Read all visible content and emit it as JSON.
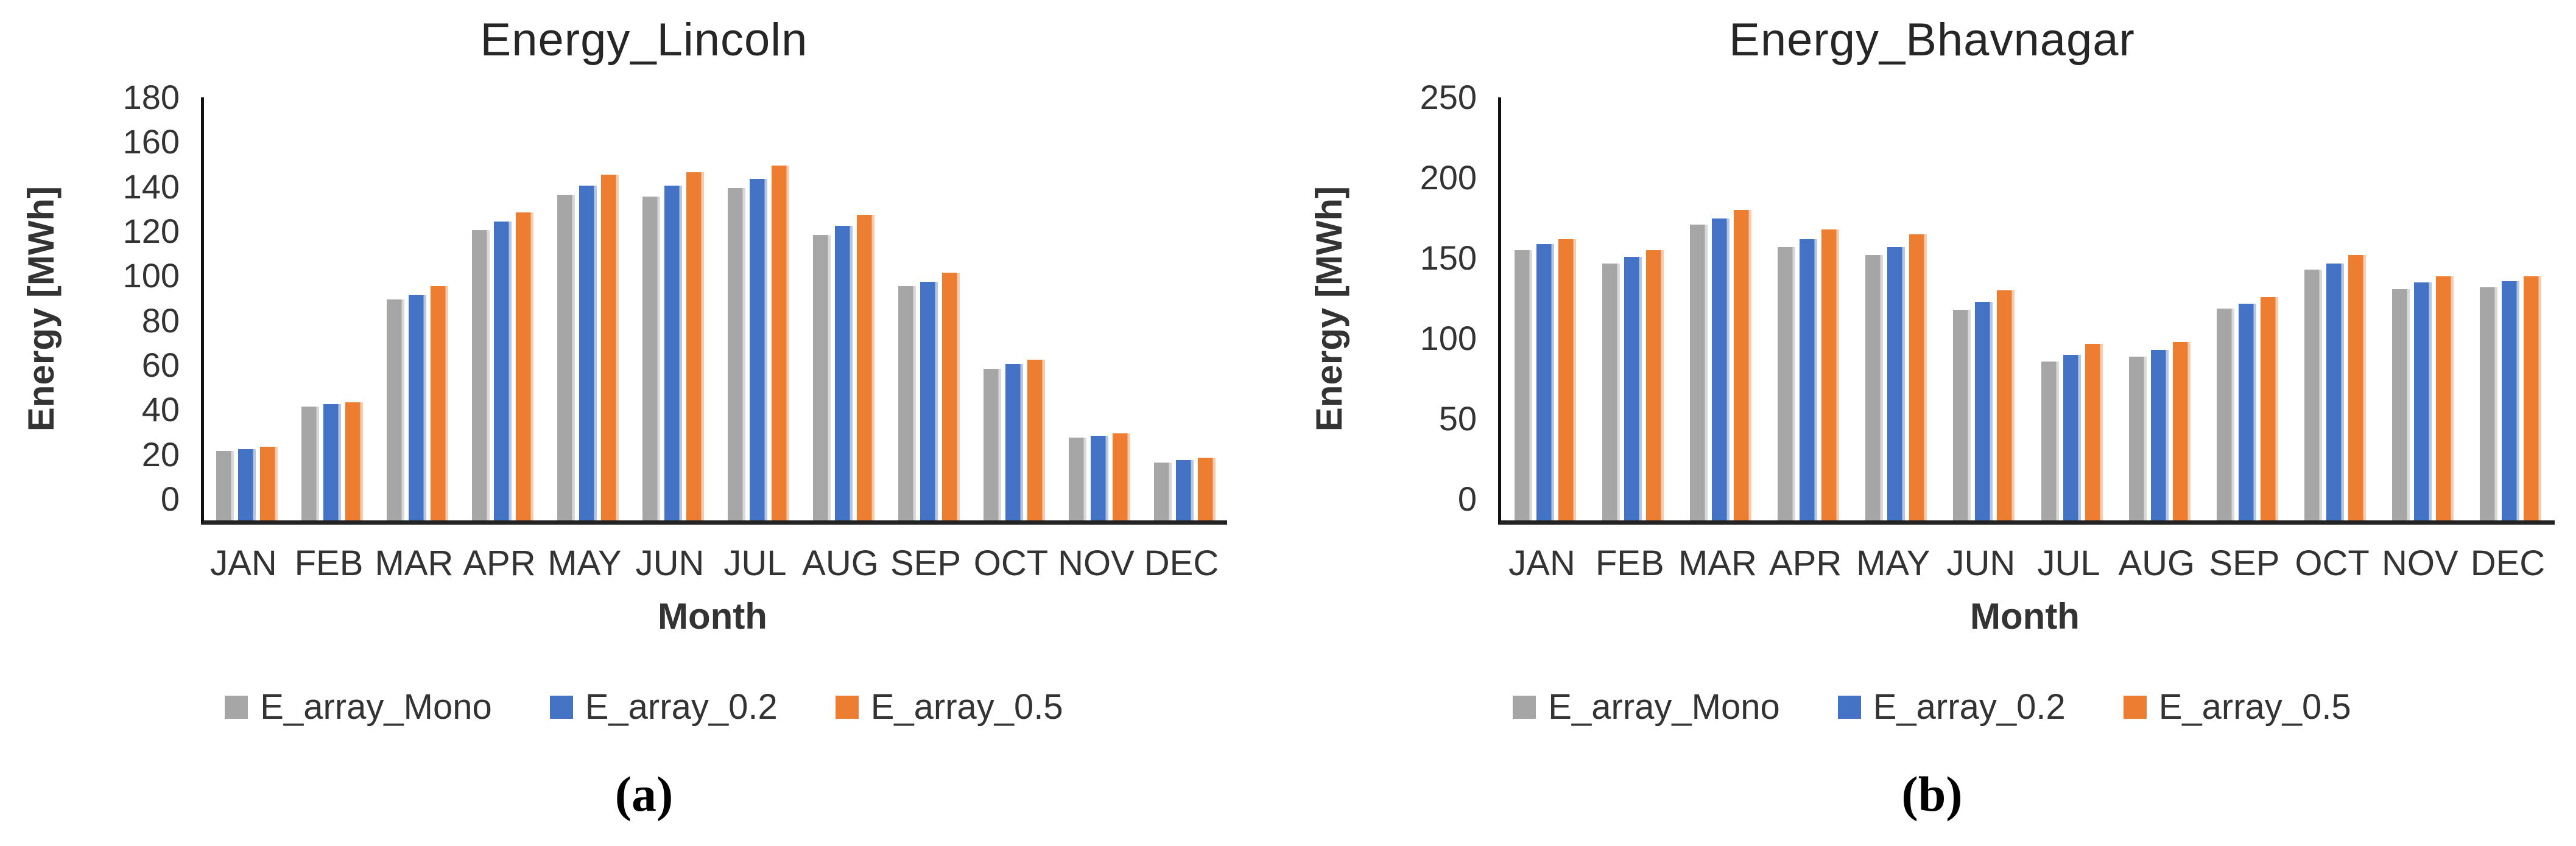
{
  "chart_data": [
    {
      "type": "bar",
      "title": "Energy_Lincoln",
      "xlabel": "Month",
      "ylabel": "Energy [MWh]",
      "ylim": [
        0,
        180
      ],
      "yticks": [
        0,
        20,
        40,
        60,
        80,
        100,
        120,
        140,
        160,
        180
      ],
      "grid": false,
      "legend_position": "bottom",
      "caption": "(a)",
      "categories": [
        "JAN",
        "FEB",
        "MAR",
        "APR",
        "MAY",
        "JUN",
        "JUL",
        "AUG",
        "SEP",
        "OCT",
        "NOV",
        "DEC"
      ],
      "series": [
        {
          "name": "E_array_Mono",
          "color": "#A6A6A6",
          "highlight": "#D9D9D9",
          "values": [
            31,
            51,
            99,
            130,
            146,
            145,
            149,
            128,
            105,
            68,
            37,
            26
          ]
        },
        {
          "name": "E_array_0.2",
          "color": "#4472C4",
          "highlight": "#B4C7E7",
          "values": [
            32,
            52,
            101,
            134,
            150,
            150,
            153,
            132,
            107,
            70,
            38,
            27
          ]
        },
        {
          "name": "E_array_0.5",
          "color": "#ED7D31",
          "highlight": "#F8CBAD",
          "values": [
            33,
            53,
            105,
            138,
            155,
            156,
            159,
            137,
            111,
            72,
            39,
            28
          ]
        }
      ]
    },
    {
      "type": "bar",
      "title": "Energy_Bhavnagar",
      "xlabel": "Month",
      "ylabel": "Energy [MWh]",
      "ylim": [
        0,
        250
      ],
      "yticks": [
        0,
        50,
        100,
        150,
        200,
        250
      ],
      "grid": false,
      "legend_position": "bottom",
      "caption": "(b)",
      "categories": [
        "JAN",
        "FEB",
        "MAR",
        "APR",
        "MAY",
        "JUN",
        "JUL",
        "AUG",
        "SEP",
        "OCT",
        "NOV",
        "DEC"
      ],
      "series": [
        {
          "name": "E_array_Mono",
          "color": "#A6A6A6",
          "highlight": "#D9D9D9",
          "values": [
            168,
            160,
            184,
            170,
            165,
            131,
            99,
            102,
            132,
            156,
            144,
            145
          ]
        },
        {
          "name": "E_array_0.2",
          "color": "#4472C4",
          "highlight": "#B4C7E7",
          "values": [
            172,
            164,
            188,
            175,
            170,
            136,
            103,
            106,
            135,
            160,
            148,
            149
          ]
        },
        {
          "name": "E_array_0.5",
          "color": "#ED7D31",
          "highlight": "#F8CBAD",
          "values": [
            175,
            168,
            193,
            181,
            178,
            143,
            110,
            111,
            139,
            165,
            152,
            152
          ]
        }
      ]
    }
  ]
}
